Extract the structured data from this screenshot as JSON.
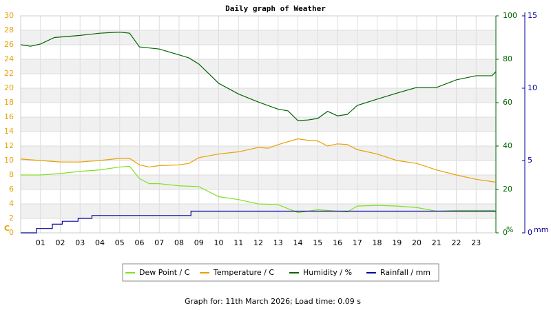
{
  "chart_data": {
    "type": "line",
    "title": "Daily graph of Weather",
    "footer": "Graph for: 11th March 2026; Load time: 0.09 s",
    "xlim": [
      0,
      24
    ],
    "xticks": [
      {
        "value": 1,
        "label": "01"
      },
      {
        "value": 2,
        "label": "02"
      },
      {
        "value": 3,
        "label": "03"
      },
      {
        "value": 4,
        "label": "04"
      },
      {
        "value": 5,
        "label": "05"
      },
      {
        "value": 6,
        "label": "06"
      },
      {
        "value": 7,
        "label": "07"
      },
      {
        "value": 8,
        "label": "08"
      },
      {
        "value": 9,
        "label": "09"
      },
      10,
      11,
      12,
      13,
      14,
      15,
      16,
      17,
      18,
      19,
      20,
      21,
      22,
      23
    ],
    "ylim": [
      0,
      30
    ],
    "yticks": [
      0,
      2,
      4,
      6,
      8,
      10,
      12,
      14,
      16,
      18,
      20,
      22,
      24,
      26,
      28,
      30
    ],
    "y_unit": "C",
    "y_color": "#e8a000",
    "y2lim": [
      0,
      100
    ],
    "y2ticks": [
      0,
      20,
      40,
      60,
      80,
      100
    ],
    "y2_unit": "%",
    "y2_color": "#006400",
    "y3lim": [
      0,
      15
    ],
    "y3ticks": [
      0,
      5,
      10,
      15
    ],
    "y3_unit": "mm",
    "y3_color": "#000099",
    "grid": true,
    "series": [
      {
        "name": "Dew Point / C",
        "color": "#80e020",
        "axis": "y",
        "x": [
          0,
          1,
          2,
          3,
          4,
          5,
          5.5,
          6,
          6.5,
          7,
          8,
          9,
          10,
          11,
          12,
          13,
          14,
          15,
          16,
          16.5,
          17,
          18,
          19,
          20,
          21,
          22,
          23,
          24
        ],
        "values": [
          8.0,
          8.0,
          8.2,
          8.5,
          8.7,
          9.1,
          9.2,
          7.5,
          6.8,
          6.8,
          6.5,
          6.4,
          5.0,
          4.6,
          4.0,
          3.9,
          2.8,
          3.2,
          3.0,
          2.9,
          3.7,
          3.8,
          3.7,
          3.5,
          3.0,
          3.1,
          3.1,
          3.1
        ]
      },
      {
        "name": "Temperature / C",
        "color": "#e8a000",
        "axis": "y",
        "x": [
          0,
          1,
          2,
          3,
          4,
          5,
          5.5,
          6,
          6.5,
          7,
          8,
          8.5,
          9,
          10,
          11,
          12,
          12.5,
          13,
          14,
          14.5,
          15,
          15.5,
          16,
          16.5,
          17,
          18,
          19,
          20,
          21,
          22,
          23,
          24
        ],
        "values": [
          10.2,
          10.0,
          9.8,
          9.8,
          10.0,
          10.3,
          10.3,
          9.4,
          9.1,
          9.3,
          9.4,
          9.6,
          10.4,
          10.9,
          11.2,
          11.8,
          11.7,
          12.2,
          13.0,
          12.8,
          12.7,
          12.0,
          12.3,
          12.2,
          11.5,
          10.9,
          10.0,
          9.6,
          8.7,
          8.0,
          7.4,
          7.0
        ]
      },
      {
        "name": "Humidity / %",
        "color": "#006400",
        "axis": "y2",
        "x": [
          0,
          0.5,
          1,
          1.7,
          3,
          4,
          5,
          5.5,
          6,
          7,
          8,
          8.5,
          9,
          10,
          11,
          12,
          13,
          13.5,
          14,
          14.5,
          15,
          15.5,
          16,
          16.5,
          17,
          18,
          19,
          20,
          21,
          22,
          23,
          23.8,
          24
        ],
        "values": [
          86.7,
          86,
          87,
          90,
          91,
          92,
          92.5,
          92,
          85.7,
          84.7,
          82,
          80.6,
          77.8,
          68.9,
          64,
          60.3,
          57,
          56.2,
          51.7,
          52,
          52.7,
          56,
          53.9,
          54.6,
          58.7,
          61.6,
          64.4,
          67,
          67,
          70.5,
          72.4,
          72.4,
          74.3
        ]
      },
      {
        "name": "Rainfall / mm",
        "color": "#000099",
        "axis": "y3",
        "step": true,
        "x": [
          0,
          0.8,
          1.6,
          2.1,
          2.9,
          3.6,
          8.6,
          24
        ],
        "values": [
          0,
          0.3,
          0.6,
          0.8,
          1.0,
          1.2,
          1.5,
          1.5
        ]
      }
    ]
  }
}
